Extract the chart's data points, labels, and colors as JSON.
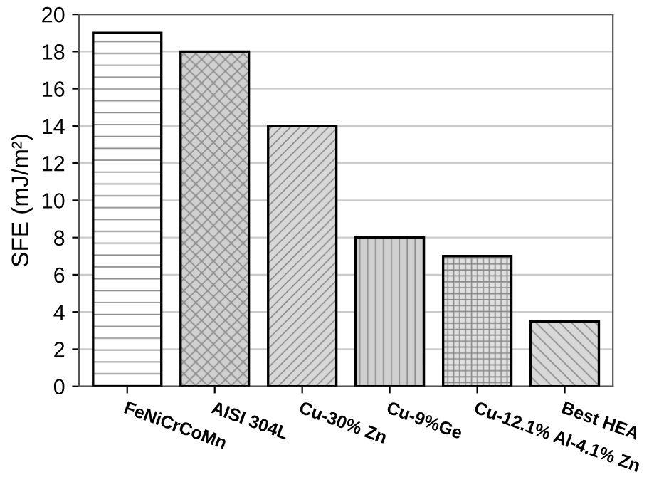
{
  "chart_data": {
    "type": "bar",
    "ylabel": "SFE (mJ/m²)",
    "categories": [
      "FeNiCrCoMn",
      "AISI 304L",
      "Cu-30% Zn",
      "Cu-9%Ge",
      "Cu-12.1% Al-4.1% Zn",
      "Best HEA"
    ],
    "values": [
      19,
      18,
      14,
      8,
      7,
      3.5
    ],
    "colors": [
      "#ffffff",
      "#d0d0d0",
      "#d8d8d8",
      "#d0d0d0",
      "#e0e0e0",
      "#d8d8d8"
    ],
    "ylim": [
      0,
      20
    ],
    "yticks": [
      0,
      2,
      4,
      6,
      8,
      10,
      12,
      14,
      16,
      18,
      20
    ],
    "grid": "y"
  }
}
